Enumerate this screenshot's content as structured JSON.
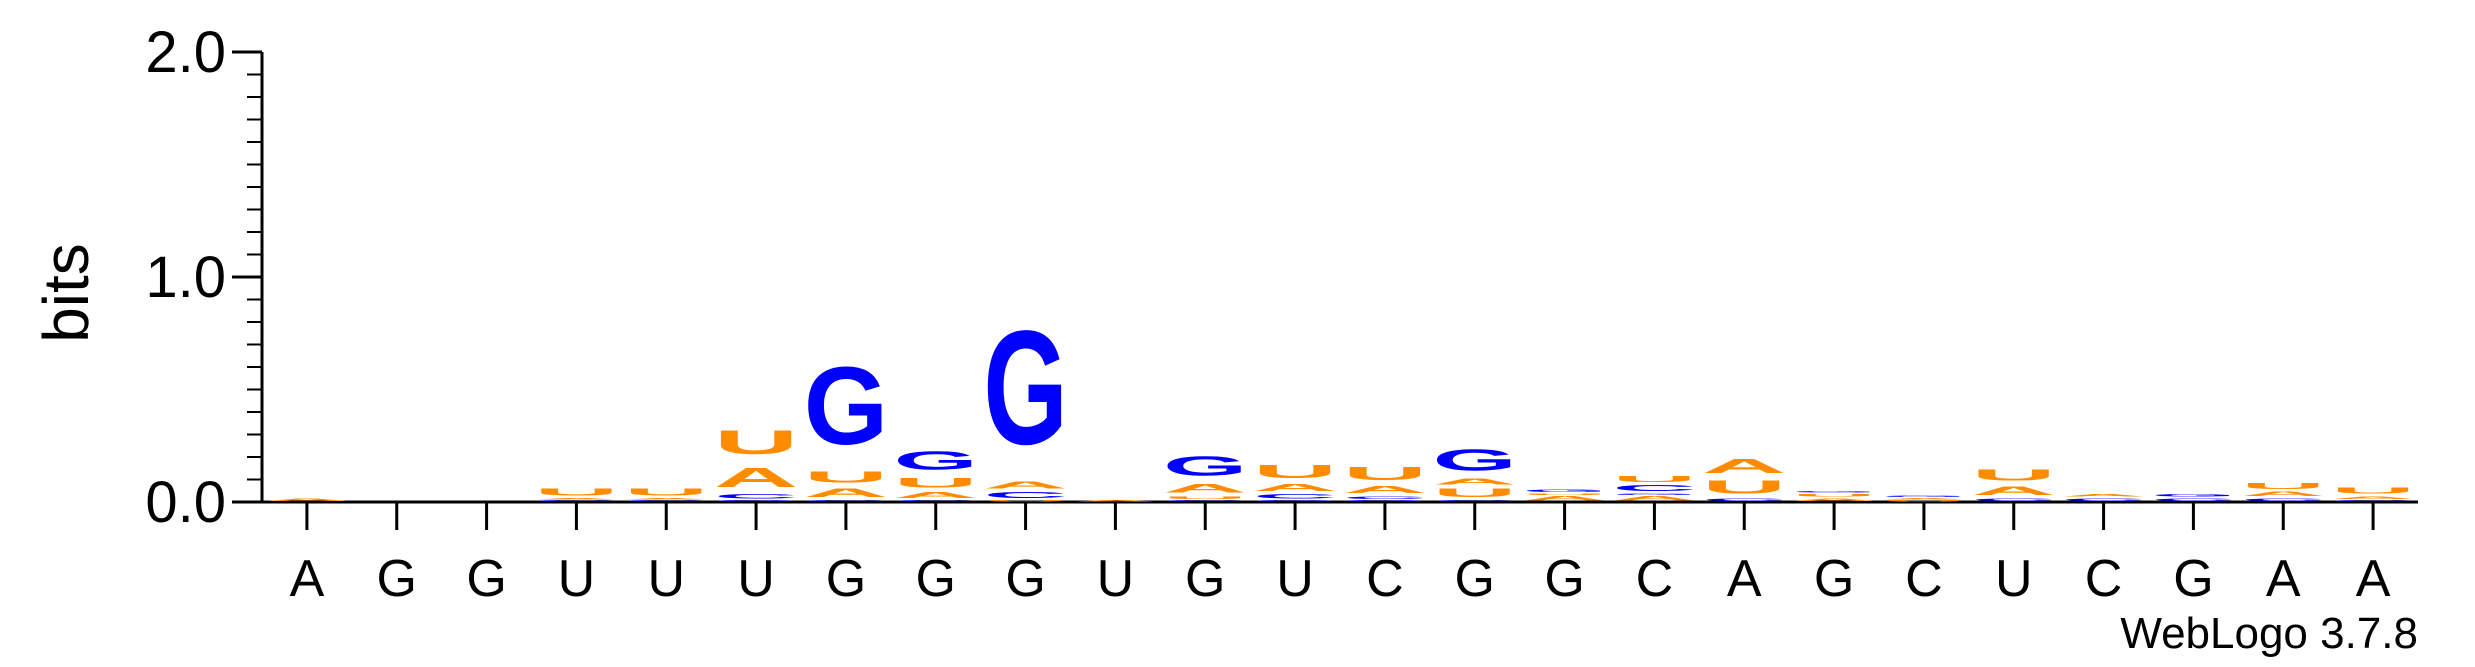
{
  "chart_data": {
    "type": "sequence-logo",
    "ylabel": "bits",
    "ylim": [
      0,
      2
    ],
    "y_ticks": [
      {
        "value": 0,
        "label": "0.0"
      },
      {
        "value": 1,
        "label": "1.0"
      },
      {
        "value": 2,
        "label": "2.0"
      }
    ],
    "x_tick_labels": [
      "A",
      "G",
      "G",
      "U",
      "U",
      "U",
      "G",
      "G",
      "G",
      "U",
      "G",
      "U",
      "C",
      "G",
      "G",
      "C",
      "A",
      "G",
      "C",
      "U",
      "C",
      "G",
      "A",
      "A"
    ],
    "colors": {
      "A": "#ff8c00",
      "U": "#ff8c00",
      "G": "#0000ff",
      "C": "#0000ff"
    },
    "positions": [
      {
        "stack": [
          {
            "letter": "A",
            "bits": 0.02
          }
        ]
      },
      {
        "stack": []
      },
      {
        "stack": []
      },
      {
        "stack": [
          {
            "letter": "C",
            "bits": 0.01
          },
          {
            "letter": "A",
            "bits": 0.01
          },
          {
            "letter": "U",
            "bits": 0.05
          }
        ]
      },
      {
        "stack": [
          {
            "letter": "C",
            "bits": 0.01
          },
          {
            "letter": "A",
            "bits": 0.01
          },
          {
            "letter": "U",
            "bits": 0.05
          }
        ]
      },
      {
        "stack": [
          {
            "letter": "G",
            "bits": 0.01
          },
          {
            "letter": "C",
            "bits": 0.03
          },
          {
            "letter": "A",
            "bits": 0.14
          },
          {
            "letter": "U",
            "bits": 0.17
          }
        ]
      },
      {
        "stack": [
          {
            "letter": "C",
            "bits": 0.01
          },
          {
            "letter": "A",
            "bits": 0.06
          },
          {
            "letter": "U",
            "bits": 0.08
          },
          {
            "letter": "G",
            "bits": 0.55
          }
        ]
      },
      {
        "stack": [
          {
            "letter": "C",
            "bits": 0.01
          },
          {
            "letter": "A",
            "bits": 0.04
          },
          {
            "letter": "U",
            "bits": 0.07
          },
          {
            "letter": "G",
            "bits": 0.13
          }
        ]
      },
      {
        "stack": [
          {
            "letter": "U",
            "bits": 0.01
          },
          {
            "letter": "C",
            "bits": 0.04
          },
          {
            "letter": "A",
            "bits": 0.05
          },
          {
            "letter": "G",
            "bits": 0.81
          }
        ]
      },
      {
        "stack": [
          {
            "letter": "A",
            "bits": 0.01
          }
        ]
      },
      {
        "stack": [
          {
            "letter": "C",
            "bits": 0.01
          },
          {
            "letter": "U",
            "bits": 0.02
          },
          {
            "letter": "A",
            "bits": 0.06
          },
          {
            "letter": "G",
            "bits": 0.14
          }
        ]
      },
      {
        "stack": [
          {
            "letter": "G",
            "bits": 0.01
          },
          {
            "letter": "C",
            "bits": 0.03
          },
          {
            "letter": "A",
            "bits": 0.05
          },
          {
            "letter": "U",
            "bits": 0.09
          }
        ]
      },
      {
        "stack": [
          {
            "letter": "G",
            "bits": 0.01
          },
          {
            "letter": "C",
            "bits": 0.02
          },
          {
            "letter": "A",
            "bits": 0.05
          },
          {
            "letter": "U",
            "bits": 0.09
          }
        ]
      },
      {
        "stack": [
          {
            "letter": "C",
            "bits": 0.01
          },
          {
            "letter": "U",
            "bits": 0.06
          },
          {
            "letter": "A",
            "bits": 0.04
          },
          {
            "letter": "G",
            "bits": 0.15
          }
        ]
      },
      {
        "stack": [
          {
            "letter": "A",
            "bits": 0.03
          },
          {
            "letter": "U",
            "bits": 0.01
          },
          {
            "letter": "G",
            "bits": 0.02
          }
        ]
      },
      {
        "stack": [
          {
            "letter": "A",
            "bits": 0.03
          },
          {
            "letter": "G",
            "bits": 0.01
          },
          {
            "letter": "C",
            "bits": 0.04
          },
          {
            "letter": "U",
            "bits": 0.04
          }
        ]
      },
      {
        "stack": [
          {
            "letter": "C",
            "bits": 0.02
          },
          {
            "letter": "U",
            "bits": 0.09
          },
          {
            "letter": "A",
            "bits": 0.1
          }
        ]
      },
      {
        "stack": [
          {
            "letter": "A",
            "bits": 0.02
          },
          {
            "letter": "U",
            "bits": 0.02
          },
          {
            "letter": "G",
            "bits": 0.01
          }
        ]
      },
      {
        "stack": [
          {
            "letter": "U",
            "bits": 0.01
          },
          {
            "letter": "A",
            "bits": 0.01
          },
          {
            "letter": "G",
            "bits": 0.01
          }
        ]
      },
      {
        "stack": [
          {
            "letter": "C",
            "bits": 0.02
          },
          {
            "letter": "A",
            "bits": 0.06
          },
          {
            "letter": "U",
            "bits": 0.08
          }
        ]
      },
      {
        "stack": [
          {
            "letter": "C",
            "bits": 0.02
          },
          {
            "letter": "A",
            "bits": 0.02
          }
        ]
      },
      {
        "stack": [
          {
            "letter": "C",
            "bits": 0.02
          },
          {
            "letter": "G",
            "bits": 0.02
          }
        ]
      },
      {
        "stack": [
          {
            "letter": "C",
            "bits": 0.02
          },
          {
            "letter": "A",
            "bits": 0.03
          },
          {
            "letter": "U",
            "bits": 0.04
          }
        ]
      },
      {
        "stack": [
          {
            "letter": "C",
            "bits": 0.01
          },
          {
            "letter": "A",
            "bits": 0.02
          },
          {
            "letter": "U",
            "bits": 0.04
          }
        ]
      }
    ]
  },
  "credit": "WebLogo 3.7.8"
}
